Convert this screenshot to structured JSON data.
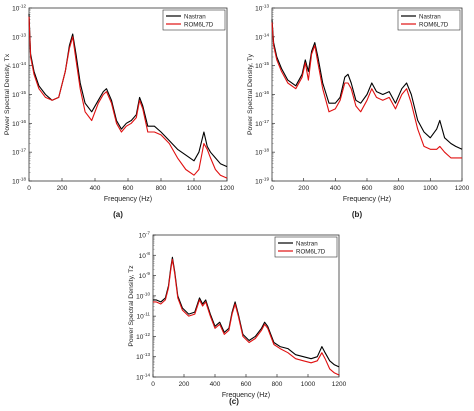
{
  "figure": {
    "background": "#ffffff"
  },
  "chart_data": [
    {
      "type": "line",
      "panel_label": "(a)",
      "xlabel": "Frequency (Hz)",
      "ylabel": "Power Spectral Density, Tx",
      "xlim": [
        0,
        1200
      ],
      "ylim_exp": [
        -18,
        -12
      ],
      "y_scale": "log",
      "xticks": [
        0,
        200,
        400,
        600,
        800,
        1000,
        1200
      ],
      "yticks": [
        {
          "base": "10",
          "exp": "-12"
        },
        {
          "base": "10",
          "exp": "-13"
        },
        {
          "base": "10",
          "exp": "-14"
        },
        {
          "base": "10",
          "exp": "-15"
        },
        {
          "base": "10",
          "exp": "-16"
        },
        {
          "base": "10",
          "exp": "-17"
        },
        {
          "base": "10",
          "exp": "-18"
        }
      ],
      "legend_position": "top-right",
      "series": [
        {
          "name": "Nastran",
          "color": "#000000",
          "x": [
            0,
            10,
            30,
            60,
            100,
            140,
            180,
            220,
            245,
            265,
            285,
            310,
            340,
            380,
            420,
            450,
            470,
            500,
            530,
            560,
            590,
            620,
            650,
            670,
            690,
            720,
            760,
            800,
            850,
            900,
            950,
            1000,
            1030,
            1060,
            1080,
            1100,
            1130,
            1160,
            1200
          ],
          "y": [
            -12.2,
            -13.6,
            -14.2,
            -14.7,
            -15.0,
            -15.2,
            -15.1,
            -14.2,
            -13.3,
            -12.9,
            -13.6,
            -14.6,
            -15.3,
            -15.6,
            -15.2,
            -14.9,
            -14.8,
            -15.2,
            -15.9,
            -16.2,
            -16.0,
            -15.9,
            -15.7,
            -15.1,
            -15.4,
            -16.1,
            -16.1,
            -16.3,
            -16.6,
            -16.9,
            -17.1,
            -17.3,
            -17.0,
            -16.3,
            -16.8,
            -17.0,
            -17.2,
            -17.4,
            -17.5
          ]
        },
        {
          "name": "ROM6L7D",
          "color": "#e01010",
          "x": [
            0,
            10,
            30,
            60,
            100,
            140,
            180,
            220,
            245,
            265,
            285,
            310,
            340,
            380,
            420,
            450,
            470,
            500,
            530,
            560,
            590,
            620,
            650,
            670,
            690,
            720,
            760,
            800,
            850,
            900,
            950,
            1000,
            1030,
            1060,
            1080,
            1100,
            1130,
            1160,
            1200
          ],
          "y": [
            -12.3,
            -13.7,
            -14.3,
            -14.8,
            -15.1,
            -15.2,
            -15.1,
            -14.2,
            -13.4,
            -13.0,
            -13.8,
            -14.8,
            -15.6,
            -15.9,
            -15.3,
            -15.0,
            -14.9,
            -15.3,
            -16.0,
            -16.3,
            -16.1,
            -16.0,
            -15.8,
            -15.2,
            -15.5,
            -16.3,
            -16.3,
            -16.4,
            -16.7,
            -17.2,
            -17.6,
            -17.8,
            -17.6,
            -16.7,
            -16.9,
            -17.2,
            -17.6,
            -17.8,
            -17.9
          ]
        }
      ]
    },
    {
      "type": "line",
      "panel_label": "(b)",
      "xlabel": "Frequency (Hz)",
      "ylabel": "Power Spectral Density, Ty",
      "xlim": [
        0,
        1200
      ],
      "ylim_exp": [
        -19,
        -13
      ],
      "y_scale": "log",
      "xticks": [
        0,
        200,
        400,
        600,
        800,
        1000,
        1200
      ],
      "yticks": [
        {
          "base": "10",
          "exp": "-13"
        },
        {
          "base": "10",
          "exp": "-14"
        },
        {
          "base": "10",
          "exp": "-15"
        },
        {
          "base": "10",
          "exp": "-16"
        },
        {
          "base": "10",
          "exp": "-17"
        },
        {
          "base": "10",
          "exp": "-18"
        },
        {
          "base": "10",
          "exp": "-19"
        }
      ],
      "legend_position": "top-right",
      "series": [
        {
          "name": "Nastran",
          "color": "#000000",
          "x": [
            0,
            10,
            30,
            60,
            100,
            150,
            190,
            210,
            230,
            250,
            270,
            290,
            320,
            360,
            400,
            430,
            460,
            480,
            500,
            530,
            560,
            600,
            630,
            660,
            700,
            740,
            780,
            820,
            850,
            880,
            920,
            960,
            1000,
            1040,
            1060,
            1090,
            1130,
            1160,
            1200
          ],
          "y": [
            -13.4,
            -14.2,
            -14.7,
            -15.1,
            -15.5,
            -15.7,
            -15.3,
            -14.8,
            -15.2,
            -14.5,
            -14.2,
            -14.7,
            -15.6,
            -16.3,
            -16.3,
            -16.1,
            -15.4,
            -15.3,
            -15.6,
            -16.2,
            -16.3,
            -16.0,
            -15.6,
            -15.9,
            -16.0,
            -15.9,
            -16.3,
            -15.8,
            -15.6,
            -16.0,
            -16.9,
            -17.3,
            -17.5,
            -17.2,
            -16.9,
            -17.5,
            -17.7,
            -17.8,
            -17.9
          ]
        },
        {
          "name": "ROM6L7D",
          "color": "#e01010",
          "x": [
            0,
            10,
            30,
            60,
            100,
            150,
            190,
            210,
            230,
            250,
            270,
            290,
            320,
            360,
            400,
            430,
            460,
            480,
            500,
            530,
            560,
            600,
            630,
            660,
            700,
            740,
            780,
            820,
            850,
            880,
            920,
            960,
            1000,
            1040,
            1060,
            1090,
            1130,
            1160,
            1200
          ],
          "y": [
            -13.5,
            -14.3,
            -14.8,
            -15.2,
            -15.6,
            -15.8,
            -15.4,
            -14.9,
            -15.5,
            -14.6,
            -14.3,
            -14.9,
            -15.8,
            -16.6,
            -16.5,
            -16.2,
            -15.6,
            -15.6,
            -15.8,
            -16.4,
            -16.6,
            -16.2,
            -15.8,
            -16.1,
            -16.2,
            -16.1,
            -16.5,
            -16.0,
            -15.8,
            -16.3,
            -17.2,
            -17.8,
            -17.9,
            -17.9,
            -17.8,
            -18.0,
            -18.2,
            -18.2,
            -18.2
          ]
        }
      ]
    },
    {
      "type": "line",
      "panel_label": "(c)",
      "xlabel": "Frequency (Hz)",
      "ylabel": "Power Spectral Density, Tz",
      "xlim": [
        0,
        1200
      ],
      "ylim_exp": [
        -14,
        -7
      ],
      "y_scale": "log",
      "xticks": [
        0,
        200,
        400,
        600,
        800,
        1000,
        1200
      ],
      "yticks": [
        {
          "base": "10",
          "exp": "-7"
        },
        {
          "base": "10",
          "exp": "-8"
        },
        {
          "base": "10",
          "exp": "-9"
        },
        {
          "base": "10",
          "exp": "-10"
        },
        {
          "base": "10",
          "exp": "-11"
        },
        {
          "base": "10",
          "exp": "-12"
        },
        {
          "base": "10",
          "exp": "-13"
        },
        {
          "base": "10",
          "exp": "-14"
        }
      ],
      "legend_position": "top-right",
      "series": [
        {
          "name": "Nastran",
          "color": "#000000",
          "x": [
            0,
            20,
            50,
            80,
            100,
            115,
            125,
            140,
            160,
            190,
            230,
            270,
            300,
            320,
            340,
            370,
            400,
            430,
            460,
            490,
            510,
            530,
            550,
            580,
            620,
            660,
            700,
            720,
            740,
            780,
            820,
            870,
            920,
            970,
            1020,
            1060,
            1090,
            1110,
            1140,
            1170,
            1200
          ],
          "y": [
            -10.2,
            -10.2,
            -10.3,
            -10.1,
            -9.5,
            -8.6,
            -8.1,
            -8.8,
            -10.0,
            -10.6,
            -10.9,
            -10.8,
            -10.1,
            -10.4,
            -10.2,
            -10.9,
            -11.5,
            -11.3,
            -11.8,
            -11.6,
            -10.8,
            -10.3,
            -10.9,
            -11.9,
            -12.2,
            -12.0,
            -11.6,
            -11.3,
            -11.5,
            -12.3,
            -12.5,
            -12.6,
            -12.9,
            -13.0,
            -13.1,
            -13.0,
            -12.5,
            -12.8,
            -13.2,
            -13.4,
            -13.5
          ]
        },
        {
          "name": "ROM6L7D",
          "color": "#e01010",
          "x": [
            0,
            20,
            50,
            80,
            100,
            115,
            125,
            140,
            160,
            190,
            230,
            270,
            300,
            320,
            340,
            370,
            400,
            430,
            460,
            490,
            510,
            530,
            550,
            580,
            620,
            660,
            700,
            720,
            740,
            780,
            820,
            870,
            920,
            970,
            1020,
            1060,
            1090,
            1110,
            1140,
            1170,
            1200
          ],
          "y": [
            -10.3,
            -10.3,
            -10.4,
            -10.2,
            -9.6,
            -8.7,
            -8.2,
            -8.9,
            -10.1,
            -10.7,
            -11.0,
            -10.9,
            -10.2,
            -10.5,
            -10.3,
            -11.0,
            -11.6,
            -11.4,
            -11.9,
            -11.7,
            -10.9,
            -10.4,
            -11.0,
            -12.0,
            -12.3,
            -12.1,
            -11.7,
            -11.4,
            -11.6,
            -12.4,
            -12.6,
            -12.8,
            -13.1,
            -13.2,
            -13.3,
            -13.2,
            -12.8,
            -13.1,
            -13.6,
            -13.8,
            -13.9
          ]
        }
      ]
    }
  ]
}
